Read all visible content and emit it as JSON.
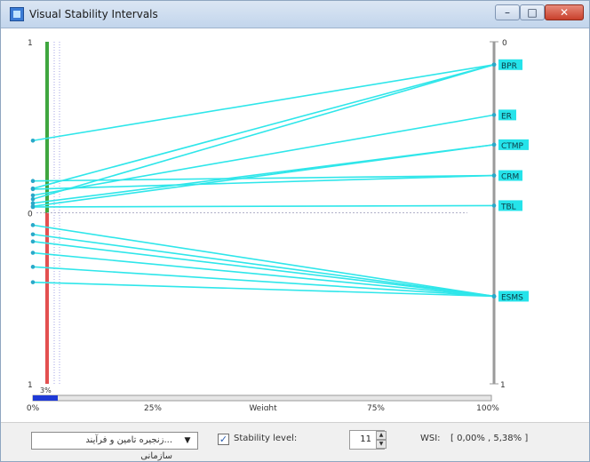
{
  "window": {
    "title": "Visual Stability Intervals"
  },
  "chart_data": {
    "type": "line",
    "title": "",
    "xlabel": "Weight",
    "x_ticks": [
      "0%",
      "25%",
      "Weight",
      "75%",
      "100%"
    ],
    "left_axis": {
      "top_label": "1",
      "mid_label": "0",
      "bottom_label": "1"
    },
    "right_axis": {
      "top_label": "0",
      "bottom_label": "1"
    },
    "slider_value_label": "3%",
    "series": [
      {
        "name": "BPR",
        "left_y": 0.289,
        "right_y": 0.067
      },
      {
        "name": "BPR",
        "left_y": 0.429,
        "right_y": 0.067
      },
      {
        "name": "BPR",
        "left_y": 0.46,
        "right_y": 0.067
      },
      {
        "name": "ER",
        "left_y": 0.449,
        "right_y": 0.214
      },
      {
        "name": "CTMP",
        "left_y": 0.472,
        "right_y": 0.301
      },
      {
        "name": "CTMP",
        "left_y": 0.481,
        "right_y": 0.301
      },
      {
        "name": "CRM",
        "left_y": 0.407,
        "right_y": 0.391
      },
      {
        "name": "CRM",
        "left_y": 0.431,
        "right_y": 0.391
      },
      {
        "name": "TBL",
        "left_y": 0.483,
        "right_y": 0.479
      },
      {
        "name": "ESMS",
        "left_y": 0.536,
        "right_y": 0.744
      },
      {
        "name": "ESMS",
        "left_y": 0.563,
        "right_y": 0.744
      },
      {
        "name": "ESMS",
        "left_y": 0.584,
        "right_y": 0.744
      },
      {
        "name": "ESMS",
        "left_y": 0.617,
        "right_y": 0.744
      },
      {
        "name": "ESMS",
        "left_y": 0.658,
        "right_y": 0.744
      },
      {
        "name": "ESMS",
        "left_y": 0.703,
        "right_y": 0.744
      }
    ],
    "labels": [
      {
        "text": "BPR",
        "y": 0.067
      },
      {
        "text": "ER",
        "y": 0.214
      },
      {
        "text": "CTMP",
        "y": 0.301
      },
      {
        "text": "CRM",
        "y": 0.391
      },
      {
        "text": "TBL",
        "y": 0.479
      },
      {
        "text": "ESMS",
        "y": 0.744
      }
    ],
    "green_range": [
      0,
      0.5
    ],
    "red_range": [
      0.5,
      1
    ],
    "grid": false
  },
  "controls": {
    "alternative_select": "...زنجیره تامین و فرآیند سازمانی",
    "stability_checkbox_label": "Stability level:",
    "stability_checked": true,
    "stability_level_value": "11",
    "wsi_label": "WSI:",
    "wsi_value": "[ 0,00% , 5,38% ]"
  },
  "colors": {
    "line": "#2fe6ea",
    "label_bg": "#25e3ea",
    "green": "#3fa63f",
    "red": "#e35050",
    "axis": "#9a9a9a",
    "slider": "#1f3ad6"
  },
  "icons": {
    "app": "app-window-icon",
    "minimize": "minimize-icon",
    "maximize": "maximize-icon",
    "close": "close-icon"
  }
}
